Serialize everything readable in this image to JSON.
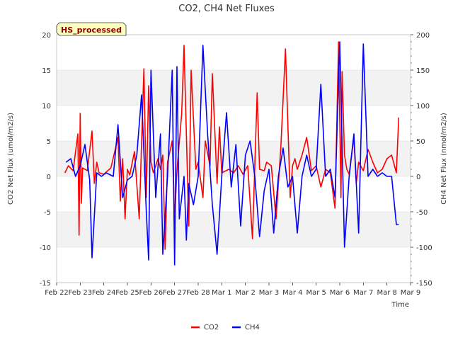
{
  "chart_data": {
    "type": "line",
    "title": "CO2, CH4 Net Fluxes",
    "xlabel": "Time",
    "ylabel": "CO2 Net Flux (umol/m2/s)",
    "ylabel_right": "CH4 Net Flux (nmol/m2/s)",
    "ylim": [
      -15,
      20
    ],
    "ylim_right": [
      -150,
      200
    ],
    "xlim": [
      0,
      15
    ],
    "yticks": [
      "-15",
      "-10",
      "-5",
      "0",
      "5",
      "10",
      "15",
      "20"
    ],
    "yticks_right": [
      "-150",
      "-100",
      "-50",
      "0",
      "50",
      "100",
      "150",
      "200"
    ],
    "xticks": [
      "Feb 22",
      "Feb 23",
      "Feb 24",
      "Feb 25",
      "Feb 26",
      "Feb 27",
      "Feb 28",
      "Mar 1",
      "Mar 2",
      "Mar 3",
      "Mar 4",
      "Mar 5",
      "Mar 6",
      "Mar 7",
      "Mar 8",
      "Mar 9"
    ],
    "badge": "HS_processed",
    "legend_position": "bottom-center",
    "series": [
      {
        "name": "CO2",
        "color": "#ff0000",
        "axis": "left",
        "x": [
          0.35,
          0.5,
          0.7,
          0.9,
          0.95,
          1.0,
          1.05,
          1.1,
          1.3,
          1.5,
          1.6,
          1.7,
          1.8,
          2.0,
          2.3,
          2.6,
          2.7,
          2.8,
          2.9,
          3.0,
          3.1,
          3.3,
          3.5,
          3.7,
          3.8,
          3.9,
          4.0,
          4.1,
          4.3,
          4.4,
          4.5,
          4.6,
          4.7,
          4.9,
          5.0,
          5.1,
          5.3,
          5.4,
          5.6,
          5.7,
          5.9,
          6.0,
          6.2,
          6.3,
          6.5,
          6.6,
          6.8,
          6.9,
          7.0,
          7.3,
          7.5,
          7.7,
          7.9,
          8.1,
          8.3,
          8.5,
          8.6,
          8.8,
          8.9,
          9.1,
          9.3,
          9.5,
          9.7,
          9.9,
          10.0,
          10.1,
          10.2,
          10.4,
          10.6,
          10.8,
          11.0,
          11.2,
          11.4,
          11.6,
          11.8,
          11.95,
          12.05,
          12.1,
          12.2,
          12.3,
          12.4,
          12.6,
          12.7,
          12.8,
          13.0,
          13.2,
          13.4,
          13.6,
          13.8,
          14.0,
          14.2,
          14.4,
          14.5
        ],
        "values": [
          0.5,
          1.5,
          0.8,
          6.0,
          -8.3,
          8.9,
          -3.8,
          1.2,
          0.8,
          6.4,
          -1.0,
          2.0,
          0.5,
          0.3,
          1.2,
          5.5,
          -3.5,
          2.5,
          -6.0,
          1.0,
          0.2,
          3.5,
          -6.0,
          15.2,
          -3.0,
          12.8,
          2.0,
          0.5,
          2.5,
          1.0,
          3.0,
          -10.3,
          2.0,
          5.0,
          -6.0,
          0.8,
          8.9,
          18.5,
          -7.0,
          15.0,
          1.0,
          2.0,
          -3.0,
          5.0,
          1.5,
          14.5,
          -1.0,
          7.0,
          0.5,
          1.0,
          0.5,
          1.5,
          0.3,
          1.5,
          -8.8,
          11.8,
          1.0,
          0.8,
          2.0,
          1.5,
          -6.0,
          4.0,
          18.0,
          -3.0,
          1.5,
          2.5,
          1.0,
          3.0,
          5.5,
          0.8,
          1.5,
          -1.5,
          1.0,
          0.5,
          -4.5,
          19.0,
          -3.0,
          14.8,
          3.0,
          1.0,
          0.3,
          5.5,
          -1.0,
          2.0,
          0.8,
          3.8,
          2.0,
          0.5,
          1.0,
          2.5,
          3.0,
          0.5,
          8.3
        ]
      },
      {
        "name": "CH4",
        "color": "#0000ff",
        "axis": "right",
        "x": [
          0.4,
          0.6,
          0.8,
          1.0,
          1.2,
          1.4,
          1.5,
          1.7,
          1.9,
          2.1,
          2.4,
          2.6,
          2.8,
          3.0,
          3.2,
          3.4,
          3.6,
          3.8,
          3.9,
          4.0,
          4.2,
          4.4,
          4.5,
          4.7,
          4.9,
          5.0,
          5.1,
          5.2,
          5.4,
          5.5,
          5.6,
          5.8,
          6.0,
          6.2,
          6.4,
          6.6,
          6.8,
          7.0,
          7.2,
          7.4,
          7.6,
          7.8,
          8.0,
          8.2,
          8.4,
          8.6,
          8.8,
          9.0,
          9.2,
          9.4,
          9.6,
          9.8,
          10.0,
          10.2,
          10.4,
          10.6,
          10.8,
          11.0,
          11.2,
          11.4,
          11.6,
          11.8,
          12.0,
          12.2,
          12.4,
          12.6,
          12.8,
          13.0,
          13.2,
          13.4,
          13.6,
          13.8,
          14.0,
          14.2,
          14.4,
          14.5
        ],
        "values": [
          20,
          25,
          0,
          15,
          45,
          -5,
          -115,
          5,
          0,
          5,
          0,
          73,
          -30,
          -5,
          0,
          30,
          115,
          -50,
          -118,
          150,
          -30,
          60,
          -110,
          0,
          150,
          -125,
          155,
          -60,
          0,
          -90,
          -10,
          -40,
          0,
          185,
          60,
          -40,
          -110,
          0,
          90,
          -15,
          45,
          -70,
          30,
          50,
          0,
          -85,
          -20,
          10,
          -80,
          0,
          40,
          -15,
          0,
          -80,
          0,
          30,
          0,
          10,
          130,
          0,
          10,
          -30,
          190,
          -100,
          0,
          60,
          -80,
          187,
          0,
          10,
          0,
          5,
          0,
          0,
          -68,
          -68
        ]
      }
    ]
  }
}
